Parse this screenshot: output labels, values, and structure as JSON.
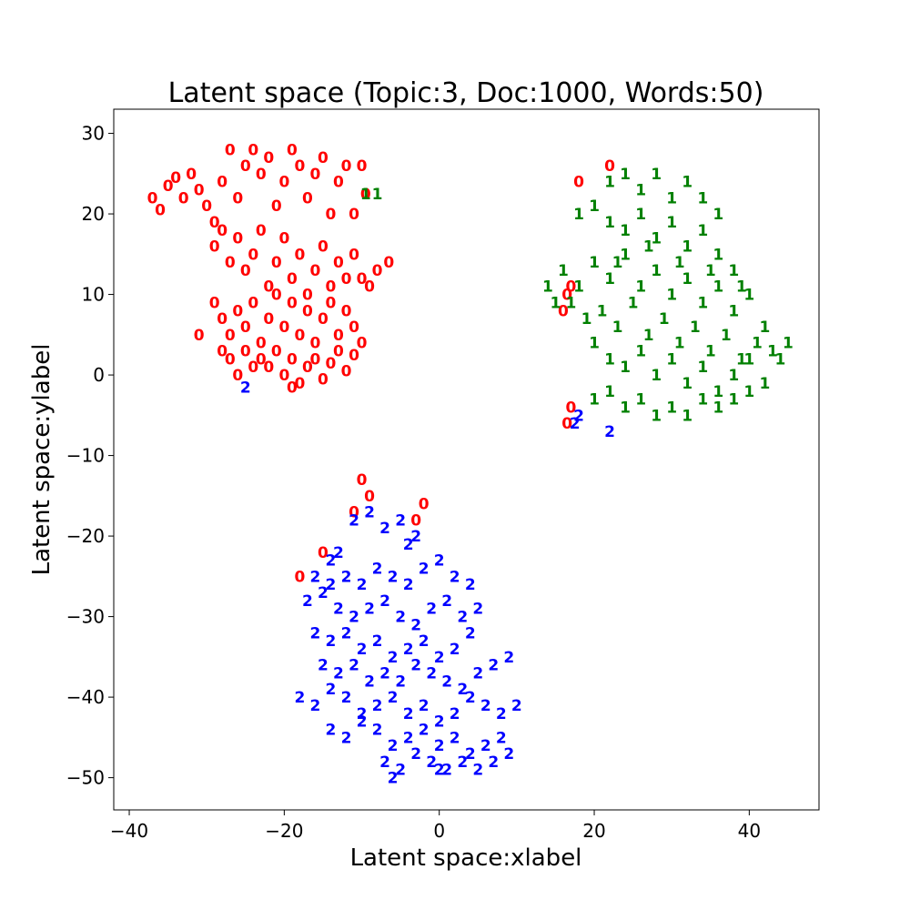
{
  "chart_data": {
    "type": "scatter",
    "title": "Latent space (Topic:3, Doc:1000, Words:50)",
    "xlabel": "Latent space:xlabel",
    "ylabel": "Latent space:ylabel",
    "xlim": [
      -42,
      49
    ],
    "ylim": [
      -54,
      33
    ],
    "xticks": [
      -40,
      -20,
      0,
      20,
      40
    ],
    "xtick_labels": [
      "−40",
      "−20",
      "0",
      "20",
      "40"
    ],
    "yticks": [
      30,
      20,
      10,
      0,
      -10,
      -20,
      -30,
      -40,
      -50
    ],
    "ytick_labels": [
      "30",
      "20",
      "10",
      "0",
      "−10",
      "−20",
      "−30",
      "−40",
      "−50"
    ],
    "grid": false,
    "marker": "text digit = topic id",
    "series": [
      {
        "label": "0",
        "color": "#ff0000",
        "points": [
          [
            -37,
            22
          ],
          [
            -36,
            20.5
          ],
          [
            -35,
            23.5
          ],
          [
            -34,
            24.5
          ],
          [
            -33,
            22
          ],
          [
            -32,
            25
          ],
          [
            -31,
            23
          ],
          [
            -30,
            21
          ],
          [
            -29,
            19
          ],
          [
            -28,
            24
          ],
          [
            -27,
            28
          ],
          [
            -26,
            22
          ],
          [
            -25,
            26
          ],
          [
            -24,
            28
          ],
          [
            -23,
            25
          ],
          [
            -22,
            27
          ],
          [
            -21,
            21
          ],
          [
            -20,
            24
          ],
          [
            -19,
            28
          ],
          [
            -18,
            26
          ],
          [
            -17,
            22
          ],
          [
            -16,
            25
          ],
          [
            -15,
            27
          ],
          [
            -14,
            20
          ],
          [
            -13,
            24
          ],
          [
            -12,
            26
          ],
          [
            -11,
            20
          ],
          [
            -10,
            26
          ],
          [
            -9.5,
            22.5
          ],
          [
            -29,
            16
          ],
          [
            -28,
            18
          ],
          [
            -27,
            14
          ],
          [
            -26,
            17
          ],
          [
            -25,
            13
          ],
          [
            -24,
            15
          ],
          [
            -23,
            18
          ],
          [
            -22,
            11
          ],
          [
            -21,
            14
          ],
          [
            -20,
            17
          ],
          [
            -19,
            12
          ],
          [
            -18,
            15
          ],
          [
            -17,
            10
          ],
          [
            -16,
            13
          ],
          [
            -15,
            16
          ],
          [
            -14,
            11
          ],
          [
            -13,
            14
          ],
          [
            -12,
            12
          ],
          [
            -11,
            15
          ],
          [
            -10,
            12
          ],
          [
            -9,
            11
          ],
          [
            -8,
            13
          ],
          [
            -6.5,
            14
          ],
          [
            -29,
            9
          ],
          [
            -28,
            7
          ],
          [
            -27,
            5
          ],
          [
            -26,
            8
          ],
          [
            -25,
            6
          ],
          [
            -24,
            9
          ],
          [
            -23,
            4
          ],
          [
            -22,
            7
          ],
          [
            -21,
            10
          ],
          [
            -20,
            6
          ],
          [
            -19,
            9
          ],
          [
            -18,
            5
          ],
          [
            -17,
            8
          ],
          [
            -16,
            4
          ],
          [
            -15,
            7
          ],
          [
            -14,
            9
          ],
          [
            -13,
            5
          ],
          [
            -12,
            8
          ],
          [
            -11,
            6
          ],
          [
            -10,
            4
          ],
          [
            -31,
            5
          ],
          [
            -28,
            3
          ],
          [
            -27,
            2
          ],
          [
            -26,
            0
          ],
          [
            -25,
            3
          ],
          [
            -24,
            1
          ],
          [
            -23,
            2
          ],
          [
            -22,
            1
          ],
          [
            -21,
            3
          ],
          [
            -20,
            0
          ],
          [
            -19,
            2
          ],
          [
            -18,
            -1
          ],
          [
            -17,
            1
          ],
          [
            -16,
            2
          ],
          [
            -15,
            -0.5
          ],
          [
            -14,
            1.5
          ],
          [
            -13,
            3
          ],
          [
            -12,
            0.5
          ],
          [
            -11,
            2.5
          ],
          [
            -19,
            -1.5
          ],
          [
            22,
            26
          ],
          [
            18,
            24
          ],
          [
            17,
            11
          ],
          [
            16.5,
            10
          ],
          [
            16,
            8
          ],
          [
            -2,
            -16
          ],
          [
            -3,
            -18
          ],
          [
            -10,
            -13
          ],
          [
            -9,
            -15
          ],
          [
            -11,
            -17
          ],
          [
            -15,
            -22
          ],
          [
            -18,
            -25
          ],
          [
            17,
            -4
          ],
          [
            16.5,
            -6
          ]
        ]
      },
      {
        "label": "1",
        "color": "#008000",
        "points": [
          [
            -9.5,
            22.5
          ],
          [
            -8,
            22.5
          ],
          [
            22,
            24
          ],
          [
            24,
            25
          ],
          [
            26,
            23
          ],
          [
            28,
            25
          ],
          [
            30,
            22
          ],
          [
            32,
            24
          ],
          [
            34,
            22
          ],
          [
            36,
            20
          ],
          [
            18,
            20
          ],
          [
            20,
            21
          ],
          [
            22,
            19
          ],
          [
            24,
            18
          ],
          [
            26,
            20
          ],
          [
            28,
            17
          ],
          [
            30,
            19
          ],
          [
            32,
            16
          ],
          [
            34,
            18
          ],
          [
            36,
            15
          ],
          [
            38,
            13
          ],
          [
            16,
            13
          ],
          [
            18,
            11
          ],
          [
            20,
            14
          ],
          [
            22,
            12
          ],
          [
            24,
            15
          ],
          [
            26,
            11
          ],
          [
            28,
            13
          ],
          [
            30,
            10
          ],
          [
            32,
            12
          ],
          [
            34,
            9
          ],
          [
            36,
            11
          ],
          [
            38,
            8
          ],
          [
            40,
            10
          ],
          [
            17,
            9
          ],
          [
            19,
            7
          ],
          [
            21,
            8
          ],
          [
            23,
            6
          ],
          [
            25,
            9
          ],
          [
            27,
            5
          ],
          [
            29,
            7
          ],
          [
            31,
            4
          ],
          [
            33,
            6
          ],
          [
            35,
            3
          ],
          [
            37,
            5
          ],
          [
            39,
            2
          ],
          [
            41,
            4
          ],
          [
            43,
            3
          ],
          [
            45,
            4
          ],
          [
            20,
            4
          ],
          [
            22,
            2
          ],
          [
            24,
            1
          ],
          [
            26,
            3
          ],
          [
            28,
            0
          ],
          [
            30,
            2
          ],
          [
            32,
            -1
          ],
          [
            34,
            1
          ],
          [
            36,
            -2
          ],
          [
            38,
            0
          ],
          [
            40,
            2
          ],
          [
            42,
            -1
          ],
          [
            20,
            -3
          ],
          [
            22,
            -2
          ],
          [
            24,
            -4
          ],
          [
            26,
            -3
          ],
          [
            28,
            -5
          ],
          [
            30,
            -4
          ],
          [
            32,
            -5
          ],
          [
            34,
            -3
          ],
          [
            36,
            -4
          ],
          [
            38,
            -3
          ],
          [
            40,
            -2
          ],
          [
            14,
            11
          ],
          [
            15,
            9
          ],
          [
            23,
            14
          ],
          [
            27,
            16
          ],
          [
            31,
            14
          ],
          [
            35,
            13
          ],
          [
            39,
            11
          ],
          [
            42,
            6
          ],
          [
            44,
            2
          ]
        ]
      },
      {
        "label": "2",
        "color": "#0000ff",
        "points": [
          [
            -25,
            -1.5
          ],
          [
            18,
            -5
          ],
          [
            17.5,
            -6
          ],
          [
            22,
            -7
          ],
          [
            -11,
            -18
          ],
          [
            -9,
            -17
          ],
          [
            -7,
            -19
          ],
          [
            -5,
            -18
          ],
          [
            -4,
            -21
          ],
          [
            -3,
            -20
          ],
          [
            -13,
            -22
          ],
          [
            -14,
            -23
          ],
          [
            -16,
            -25
          ],
          [
            -14,
            -26
          ],
          [
            -12,
            -25
          ],
          [
            -10,
            -26
          ],
          [
            -8,
            -24
          ],
          [
            -6,
            -25
          ],
          [
            -4,
            -26
          ],
          [
            -2,
            -24
          ],
          [
            0,
            -23
          ],
          [
            2,
            -25
          ],
          [
            4,
            -26
          ],
          [
            -17,
            -28
          ],
          [
            -15,
            -27
          ],
          [
            -13,
            -29
          ],
          [
            -11,
            -30
          ],
          [
            -9,
            -29
          ],
          [
            -7,
            -28
          ],
          [
            -5,
            -30
          ],
          [
            -3,
            -31
          ],
          [
            -1,
            -29
          ],
          [
            1,
            -28
          ],
          [
            3,
            -30
          ],
          [
            5,
            -29
          ],
          [
            -16,
            -32
          ],
          [
            -14,
            -33
          ],
          [
            -12,
            -32
          ],
          [
            -10,
            -34
          ],
          [
            -8,
            -33
          ],
          [
            -6,
            -35
          ],
          [
            -4,
            -34
          ],
          [
            -2,
            -33
          ],
          [
            0,
            -35
          ],
          [
            2,
            -34
          ],
          [
            4,
            -32
          ],
          [
            -15,
            -36
          ],
          [
            -13,
            -37
          ],
          [
            -11,
            -36
          ],
          [
            -9,
            -38
          ],
          [
            -7,
            -37
          ],
          [
            -5,
            -38
          ],
          [
            -3,
            -36
          ],
          [
            -1,
            -37
          ],
          [
            1,
            -38
          ],
          [
            3,
            -39
          ],
          [
            5,
            -37
          ],
          [
            7,
            -36
          ],
          [
            9,
            -35
          ],
          [
            -18,
            -40
          ],
          [
            -16,
            -41
          ],
          [
            -14,
            -39
          ],
          [
            -12,
            -40
          ],
          [
            -10,
            -42
          ],
          [
            -8,
            -41
          ],
          [
            -6,
            -40
          ],
          [
            -4,
            -42
          ],
          [
            -2,
            -41
          ],
          [
            0,
            -43
          ],
          [
            2,
            -42
          ],
          [
            4,
            -40
          ],
          [
            6,
            -41
          ],
          [
            8,
            -42
          ],
          [
            10,
            -41
          ],
          [
            -14,
            -44
          ],
          [
            -12,
            -45
          ],
          [
            -10,
            -43
          ],
          [
            -8,
            -44
          ],
          [
            -6,
            -46
          ],
          [
            -4,
            -45
          ],
          [
            -2,
            -44
          ],
          [
            0,
            -46
          ],
          [
            2,
            -45
          ],
          [
            4,
            -47
          ],
          [
            6,
            -46
          ],
          [
            8,
            -45
          ],
          [
            -7,
            -48
          ],
          [
            -5,
            -49
          ],
          [
            -3,
            -47
          ],
          [
            -1,
            -48
          ],
          [
            1,
            -49
          ],
          [
            3,
            -48
          ],
          [
            5,
            -49
          ],
          [
            7,
            -48
          ],
          [
            9,
            -47
          ],
          [
            -6,
            -50
          ],
          [
            0,
            -49
          ]
        ]
      }
    ]
  }
}
